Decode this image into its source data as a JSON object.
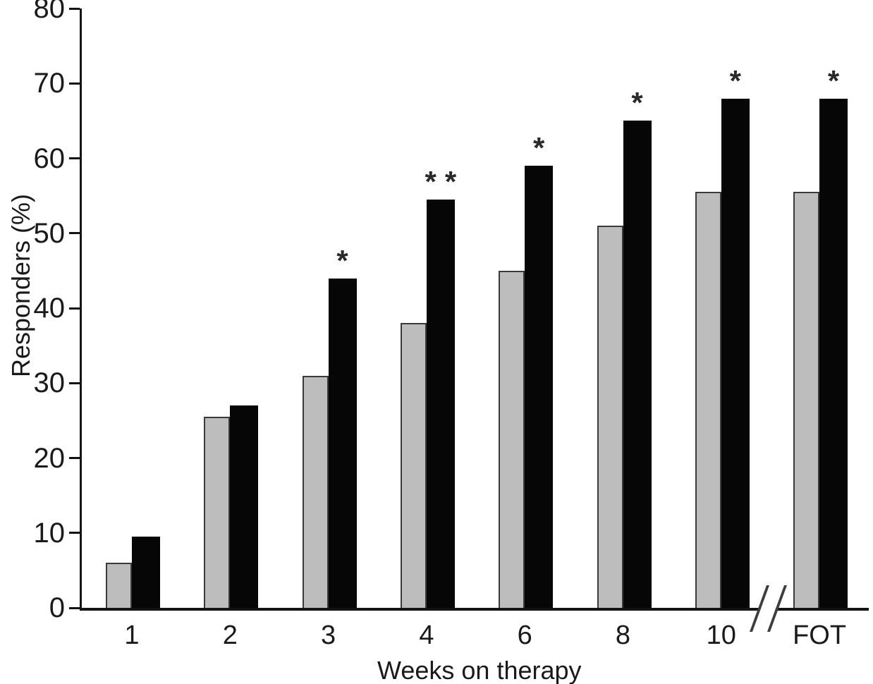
{
  "chart_data": {
    "type": "bar",
    "title": "",
    "xlabel": "Weeks on therapy",
    "ylabel": "Responders (%)",
    "ylim": [
      0,
      80
    ],
    "yticks": [
      0,
      10,
      20,
      30,
      40,
      50,
      60,
      70,
      80
    ],
    "categories": [
      "1",
      "2",
      "3",
      "4",
      "6",
      "8",
      "10",
      "FOT"
    ],
    "series": [
      {
        "name": "gray-bars",
        "color": "#bdbdbd",
        "values": [
          6,
          25.5,
          31,
          38,
          45,
          51,
          55.5,
          55.5
        ]
      },
      {
        "name": "black-bars",
        "color": "#060606",
        "values": [
          9.5,
          27,
          44,
          54.5,
          59,
          65,
          68,
          68
        ]
      }
    ],
    "annotations": [
      "",
      "",
      "*",
      "**",
      "*",
      "*",
      "*",
      "*"
    ],
    "axis_break": {
      "between": [
        "10",
        "FOT"
      ],
      "symbol": "//"
    },
    "grid": false,
    "legend": "none"
  }
}
